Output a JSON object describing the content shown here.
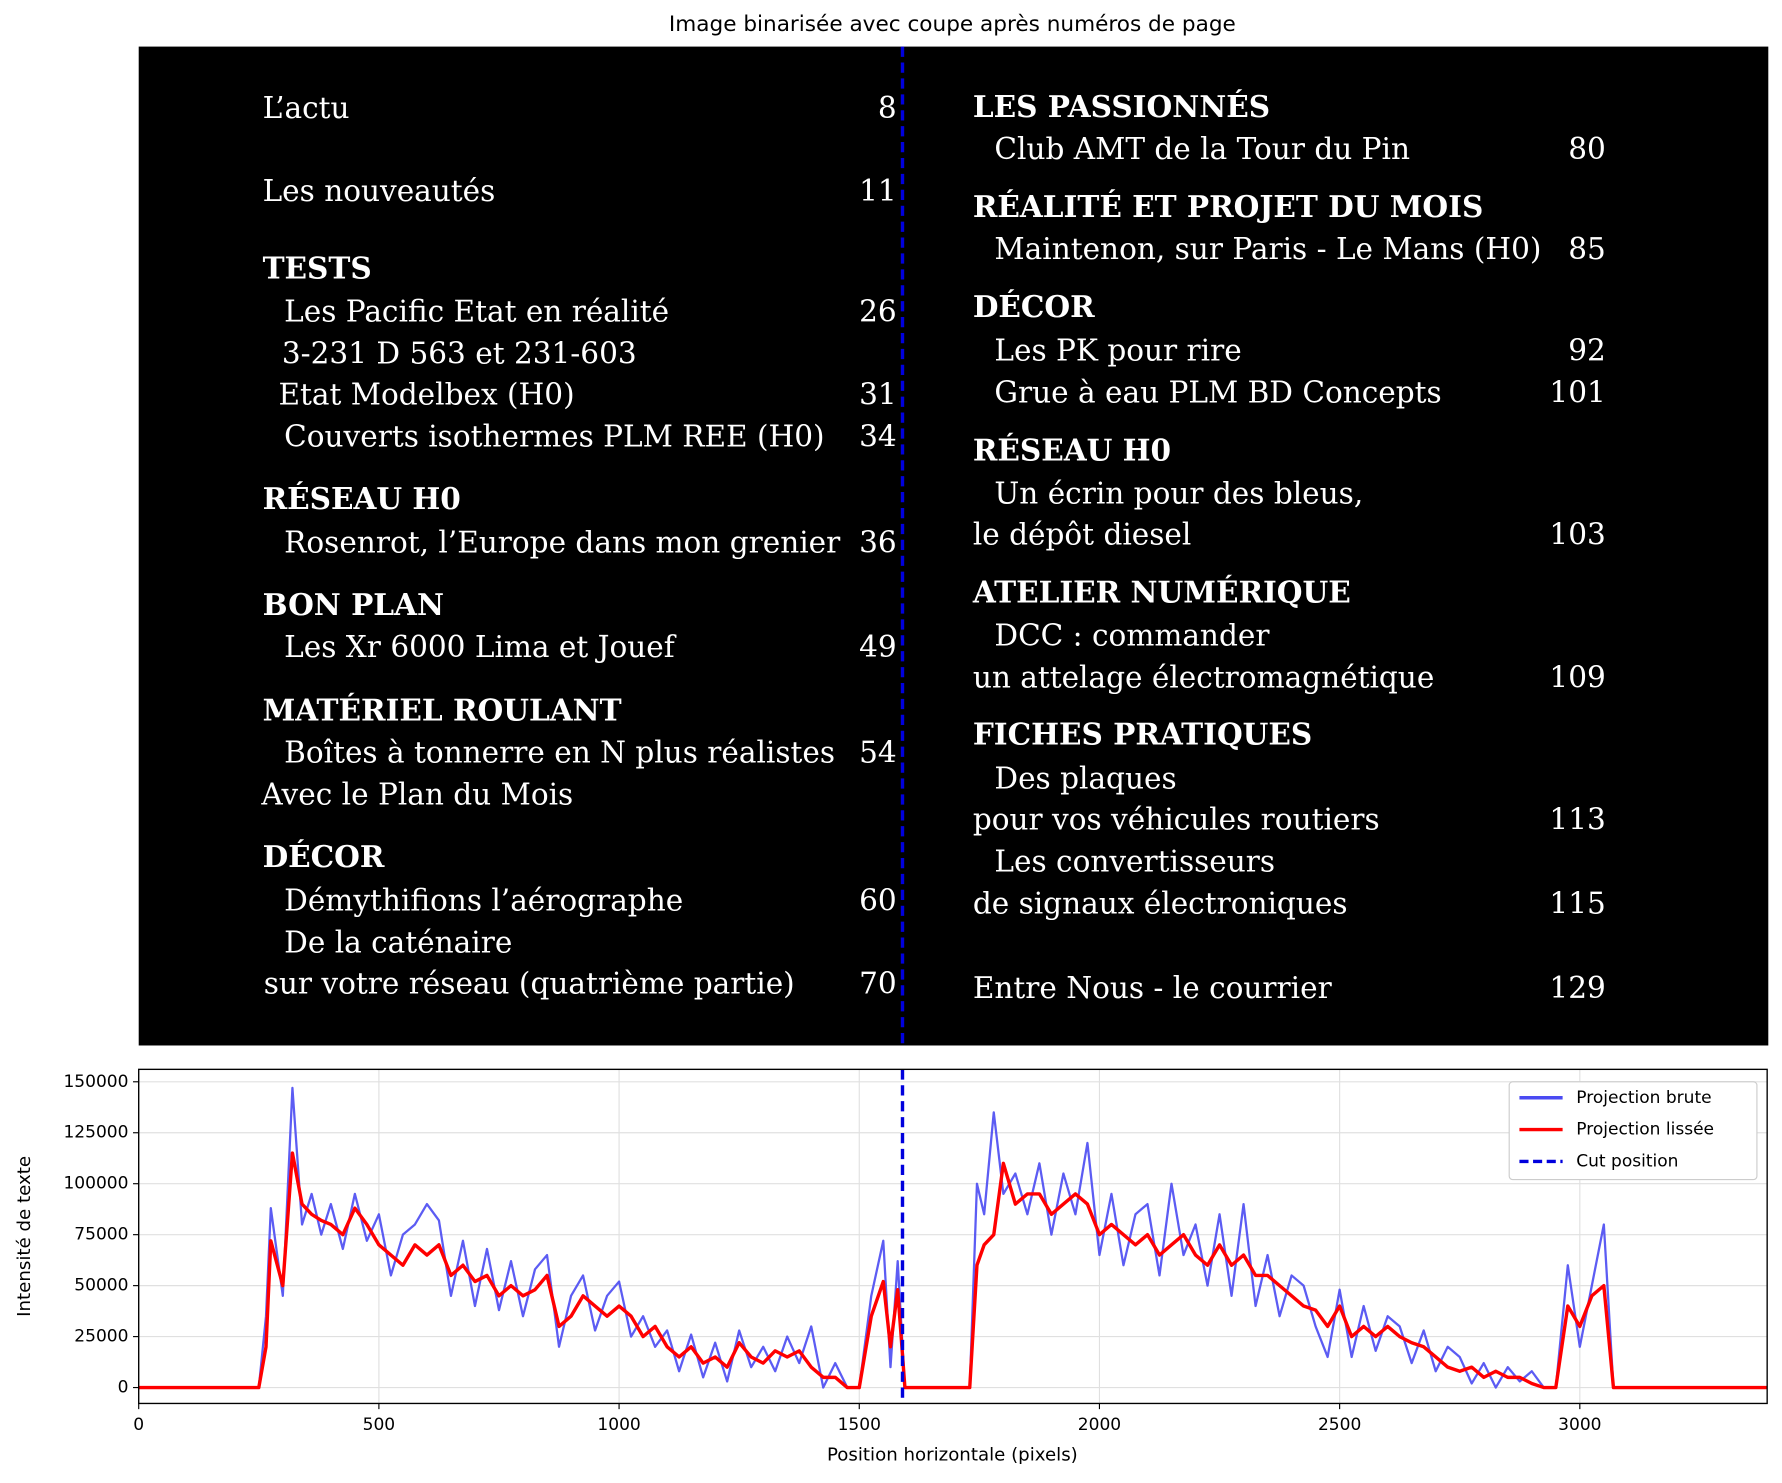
{
  "image_panel": {
    "title": "Image binarisée avec coupe après numéros de page",
    "left": [
      {
        "text": "L’actu",
        "page": "8"
      },
      {
        "text": "Les nouveautés",
        "page": "11"
      },
      {
        "text": "TESTS"
      },
      {
        "text": "Les Pacific Etat en réalité",
        "page": "26"
      },
      {
        "text": "3-231 D 563 et 231-603"
      },
      {
        "text": "Etat Modelbex (H0)",
        "page": "31"
      },
      {
        "text": "Couverts isothermes PLM REE (H0)",
        "page": "34"
      },
      {
        "text": "RÉSEAU H0"
      },
      {
        "text": "Rosenrot, l’Europe dans mon grenier",
        "page": "36"
      },
      {
        "text": "BON PLAN"
      },
      {
        "text": "Les Xr 6000 Lima et Jouef",
        "page": "49"
      },
      {
        "text": "MATÉRIEL ROULANT"
      },
      {
        "text": "Boîtes à tonnerre en N plus réalistes",
        "page": "54"
      },
      {
        "text": "Avec le Plan du Mois"
      },
      {
        "text": "DÉCOR"
      },
      {
        "text": "Démythifions l’aérographe",
        "page": "60"
      },
      {
        "text": "De la caténaire"
      },
      {
        "text": "sur votre réseau (quatrième partie)",
        "page": "70"
      }
    ],
    "right": [
      {
        "text": "LES PASSIONNÉS"
      },
      {
        "text": "Club AMT de la Tour du Pin",
        "page": "80"
      },
      {
        "text": "RÉALITÉ ET PROJET DU MOIS"
      },
      {
        "text": "Maintenon, sur Paris - Le Mans (H0)",
        "page": "85"
      },
      {
        "text": "DÉCOR"
      },
      {
        "text": "Les PK pour rire",
        "page": "92"
      },
      {
        "text": "Grue à eau PLM BD Concepts",
        "page": "101"
      },
      {
        "text": "RÉSEAU H0"
      },
      {
        "text": "Un écrin pour des bleus,"
      },
      {
        "text": "le dépôt diesel",
        "page": "103"
      },
      {
        "text": "ATELIER NUMÉRIQUE"
      },
      {
        "text": "DCC : commander"
      },
      {
        "text": "un attelage électromagnétique",
        "page": "109"
      },
      {
        "text": "FICHES PRATIQUES"
      },
      {
        "text": "Des plaques"
      },
      {
        "text": "pour vos véhicules routiers",
        "page": "113"
      },
      {
        "text": "Les convertisseurs"
      },
      {
        "text": "de signaux électroniques",
        "page": "115"
      },
      {
        "text": "Entre Nous - le courrier",
        "page": "129"
      }
    ]
  },
  "chart_data": {
    "type": "line",
    "xlabel": "Position horizontale (pixels)",
    "ylabel": "Intensité de texte",
    "xlim": [
      0,
      3390
    ],
    "ylim": [
      -7800,
      156100
    ],
    "xticks": [
      0,
      500,
      1000,
      1500,
      2000,
      2500,
      3000
    ],
    "yticks": [
      0,
      25000,
      50000,
      75000,
      100000,
      125000,
      150000
    ],
    "grid": true,
    "legend": "upper right",
    "x": [
      0,
      250,
      265,
      275,
      300,
      320,
      340,
      360,
      380,
      400,
      425,
      450,
      475,
      500,
      525,
      550,
      575,
      600,
      625,
      650,
      675,
      700,
      725,
      750,
      775,
      800,
      825,
      850,
      875,
      900,
      925,
      950,
      975,
      1000,
      1025,
      1050,
      1075,
      1100,
      1125,
      1150,
      1175,
      1200,
      1225,
      1250,
      1275,
      1300,
      1325,
      1350,
      1375,
      1400,
      1425,
      1450,
      1475,
      1500,
      1525,
      1550,
      1565,
      1580,
      1595,
      1700,
      1730,
      1745,
      1760,
      1780,
      1800,
      1825,
      1850,
      1875,
      1900,
      1925,
      1950,
      1975,
      2000,
      2025,
      2050,
      2075,
      2100,
      2125,
      2150,
      2175,
      2200,
      2225,
      2250,
      2275,
      2300,
      2325,
      2350,
      2375,
      2400,
      2425,
      2450,
      2475,
      2500,
      2525,
      2550,
      2575,
      2600,
      2625,
      2650,
      2675,
      2700,
      2725,
      2750,
      2775,
      2800,
      2825,
      2850,
      2875,
      2900,
      2925,
      2950,
      2975,
      3000,
      3025,
      3050,
      3070,
      3100,
      3390
    ],
    "series": [
      {
        "name": "Projection brute",
        "color": "#4a4af2",
        "values": [
          0,
          0,
          35000,
          88000,
          45000,
          147000,
          80000,
          95000,
          75000,
          90000,
          68000,
          95000,
          72000,
          85000,
          55000,
          75000,
          80000,
          90000,
          82000,
          45000,
          72000,
          40000,
          68000,
          38000,
          62000,
          35000,
          58000,
          65000,
          20000,
          45000,
          55000,
          28000,
          45000,
          52000,
          25000,
          35000,
          20000,
          28000,
          8000,
          26000,
          5000,
          22000,
          3000,
          28000,
          10000,
          20000,
          8000,
          25000,
          12000,
          30000,
          0,
          12000,
          0,
          0,
          45000,
          72000,
          10000,
          62000,
          0,
          0,
          0,
          100000,
          85000,
          135000,
          95000,
          105000,
          85000,
          110000,
          75000,
          105000,
          85000,
          120000,
          65000,
          95000,
          60000,
          85000,
          90000,
          55000,
          100000,
          65000,
          80000,
          50000,
          85000,
          45000,
          90000,
          40000,
          65000,
          35000,
          55000,
          50000,
          30000,
          15000,
          48000,
          15000,
          40000,
          18000,
          35000,
          30000,
          12000,
          28000,
          8000,
          20000,
          15000,
          2000,
          12000,
          0,
          10000,
          3000,
          8000,
          0,
          0,
          60000,
          20000,
          50000,
          80000,
          0,
          0,
          0
        ]
      },
      {
        "name": "Projection lissée",
        "color": "#ff0000",
        "values": [
          0,
          0,
          20000,
          72000,
          50000,
          115000,
          90000,
          85000,
          82000,
          80000,
          75000,
          88000,
          80000,
          70000,
          65000,
          60000,
          70000,
          65000,
          70000,
          55000,
          60000,
          52000,
          55000,
          45000,
          50000,
          45000,
          48000,
          55000,
          30000,
          35000,
          45000,
          40000,
          35000,
          40000,
          35000,
          25000,
          30000,
          20000,
          15000,
          20000,
          12000,
          15000,
          10000,
          22000,
          15000,
          12000,
          18000,
          15000,
          18000,
          10000,
          5000,
          5000,
          0,
          0,
          35000,
          52000,
          20000,
          48000,
          0,
          0,
          0,
          60000,
          70000,
          75000,
          110000,
          90000,
          95000,
          95000,
          85000,
          90000,
          95000,
          90000,
          75000,
          80000,
          75000,
          70000,
          75000,
          65000,
          70000,
          75000,
          65000,
          60000,
          70000,
          60000,
          65000,
          55000,
          55000,
          50000,
          45000,
          40000,
          38000,
          30000,
          40000,
          25000,
          30000,
          25000,
          30000,
          25000,
          22000,
          20000,
          15000,
          10000,
          8000,
          10000,
          5000,
          8000,
          5000,
          5000,
          2000,
          0,
          0,
          40000,
          30000,
          45000,
          50000,
          0,
          0,
          0
        ]
      }
    ],
    "cut_position": 1590,
    "cut_name": "Cut position",
    "cut_color": "#0000dd"
  }
}
